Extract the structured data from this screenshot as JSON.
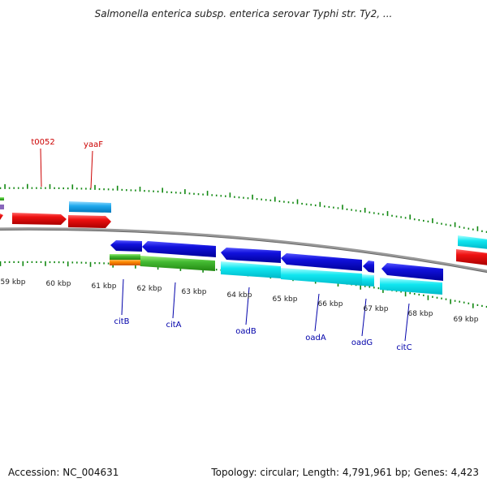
{
  "title": "Salmonella enterica subsp. enterica serovar Typhi str. Ty2, ...",
  "footer": {
    "accession": "Accession: NC_004631",
    "summary": "Topology: circular; Length: 4,791,961 bp; Genes: 4,423"
  },
  "map": {
    "scale_labels": [
      "59 kbp",
      "60 kbp",
      "61 kbp",
      "62 kbp",
      "63 kbp",
      "64 kbp",
      "65 kbp",
      "66 kbp",
      "67 kbp",
      "68 kbp",
      "69 kbp"
    ],
    "top_gene_labels": [
      "t0052",
      "yaaF"
    ],
    "bottom_gene_labels": [
      "citB",
      "citA",
      "oadB",
      "oadA",
      "oadG",
      "citC"
    ],
    "colors": {
      "forward_red": "#ee1111",
      "reverse_blue": "#1111dd",
      "cyan": "#11e6f0",
      "green": "#44bb33",
      "orange": "#ff8800",
      "tick_green": "#118811",
      "backbone": "#888888",
      "top_label": "#cc0000",
      "bottom_label": "#0000aa"
    }
  }
}
